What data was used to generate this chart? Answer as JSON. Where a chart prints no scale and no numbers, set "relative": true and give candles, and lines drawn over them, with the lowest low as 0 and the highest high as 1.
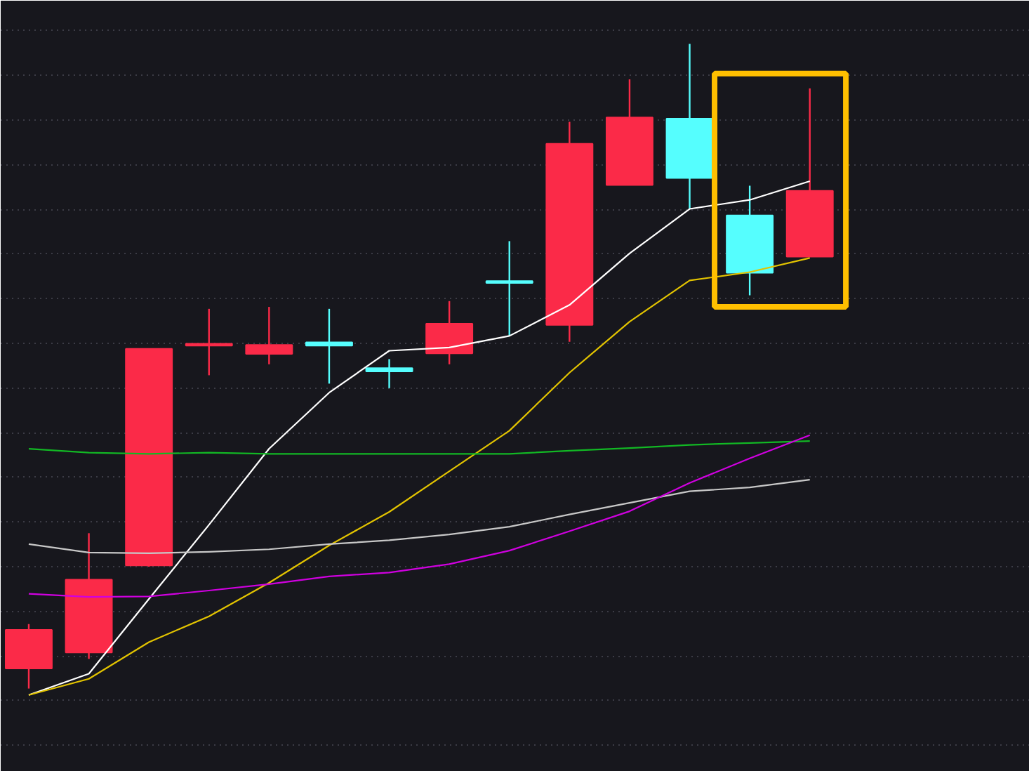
{
  "chart_data": {
    "type": "candlestick",
    "relative": true,
    "tick_labels": false,
    "grid": "y",
    "categories": [
      null,
      null,
      null,
      null,
      null,
      null,
      null,
      null,
      null,
      null,
      null,
      null,
      null,
      null
    ],
    "ohlc": [
      [
        0.031,
        0.1,
        0.0,
        0.091
      ],
      [
        0.056,
        0.241,
        0.046,
        0.169
      ],
      [
        0.191,
        0.527,
        0.189,
        0.527
      ],
      [
        0.532,
        0.589,
        0.486,
        0.535
      ],
      [
        0.519,
        0.592,
        0.503,
        0.533
      ],
      [
        0.537,
        0.589,
        0.473,
        0.532
      ],
      [
        0.497,
        0.511,
        0.466,
        0.492
      ],
      [
        0.52,
        0.601,
        0.503,
        0.566
      ],
      [
        0.632,
        0.694,
        0.547,
        0.629
      ],
      [
        0.564,
        0.879,
        0.538,
        0.845
      ],
      [
        0.781,
        0.945,
        0.781,
        0.886
      ],
      [
        0.884,
        1.0,
        0.744,
        0.792
      ],
      [
        0.734,
        0.78,
        0.61,
        0.645
      ],
      [
        0.67,
        0.931,
        0.67,
        0.772
      ]
    ],
    "colors": [
      "#fb2a48",
      "#fb2a48",
      "#fb2a48",
      "#fb2a48",
      "#fb2a48",
      "#55fefe",
      "#55fefe",
      "#fb2a48",
      "#55fefe",
      "#fb2a48",
      "#fb2a48",
      "#55fefe",
      "#55fefe",
      "#fb2a48"
    ],
    "series": [
      {
        "type": "line",
        "color": "#ffffff",
        "values": [
          -0.01,
          0.023,
          0.139,
          0.254,
          0.372,
          0.459,
          0.524,
          0.529,
          0.547,
          0.595,
          0.675,
          0.744,
          0.758,
          0.787
        ]
      },
      {
        "type": "line",
        "color": "#e3c400",
        "values": [
          -0.01,
          0.015,
          0.072,
          0.112,
          0.164,
          0.222,
          0.274,
          0.337,
          0.4,
          0.49,
          0.569,
          0.633,
          0.646,
          0.668
        ]
      },
      {
        "type": "line",
        "color": "#12b824",
        "values": [
          0.372,
          0.366,
          0.364,
          0.366,
          0.364,
          0.364,
          0.364,
          0.364,
          0.364,
          0.369,
          0.373,
          0.378,
          0.381,
          0.384
        ]
      },
      {
        "type": "line",
        "color": "#c8c8c8",
        "values": [
          0.224,
          0.211,
          0.21,
          0.212,
          0.216,
          0.224,
          0.23,
          0.239,
          0.251,
          0.27,
          0.288,
          0.306,
          0.312,
          0.324
        ]
      },
      {
        "type": "line",
        "color": "#d000e0",
        "values": [
          0.147,
          0.142,
          0.143,
          0.152,
          0.162,
          0.174,
          0.18,
          0.193,
          0.214,
          0.244,
          0.275,
          0.319,
          0.357,
          0.393
        ]
      }
    ]
  }
}
